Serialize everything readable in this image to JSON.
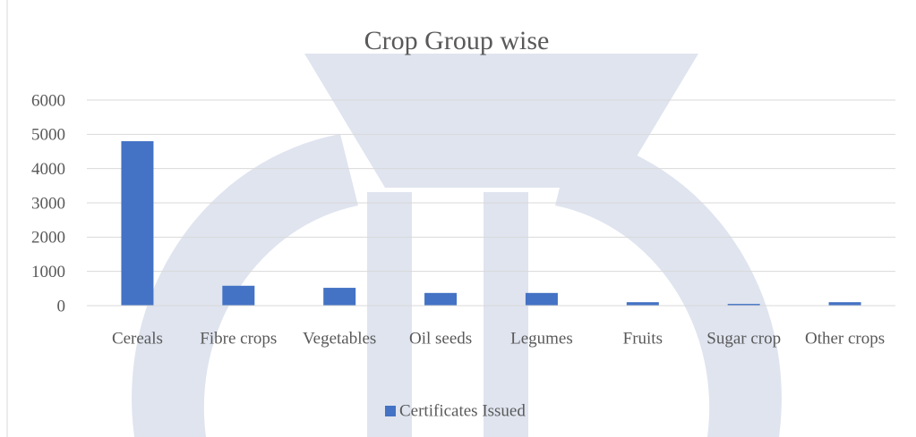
{
  "chart_data": {
    "type": "bar",
    "title": "Crop Group wise",
    "categories": [
      "Cereals",
      "Fibre crops",
      "Vegetables",
      "Oil seeds",
      "Legumes",
      "Fruits",
      "Sugar crop",
      "Other crops"
    ],
    "series": [
      {
        "name": "Certificates Issued",
        "color": "#4472c4",
        "values": [
          4800,
          580,
          520,
          370,
          370,
          100,
          50,
          100
        ]
      }
    ],
    "ylim": [
      0,
      6000
    ],
    "yticks": [
      0,
      1000,
      2000,
      3000,
      4000,
      5000,
      6000
    ],
    "grid": true,
    "legend": "bottom"
  }
}
